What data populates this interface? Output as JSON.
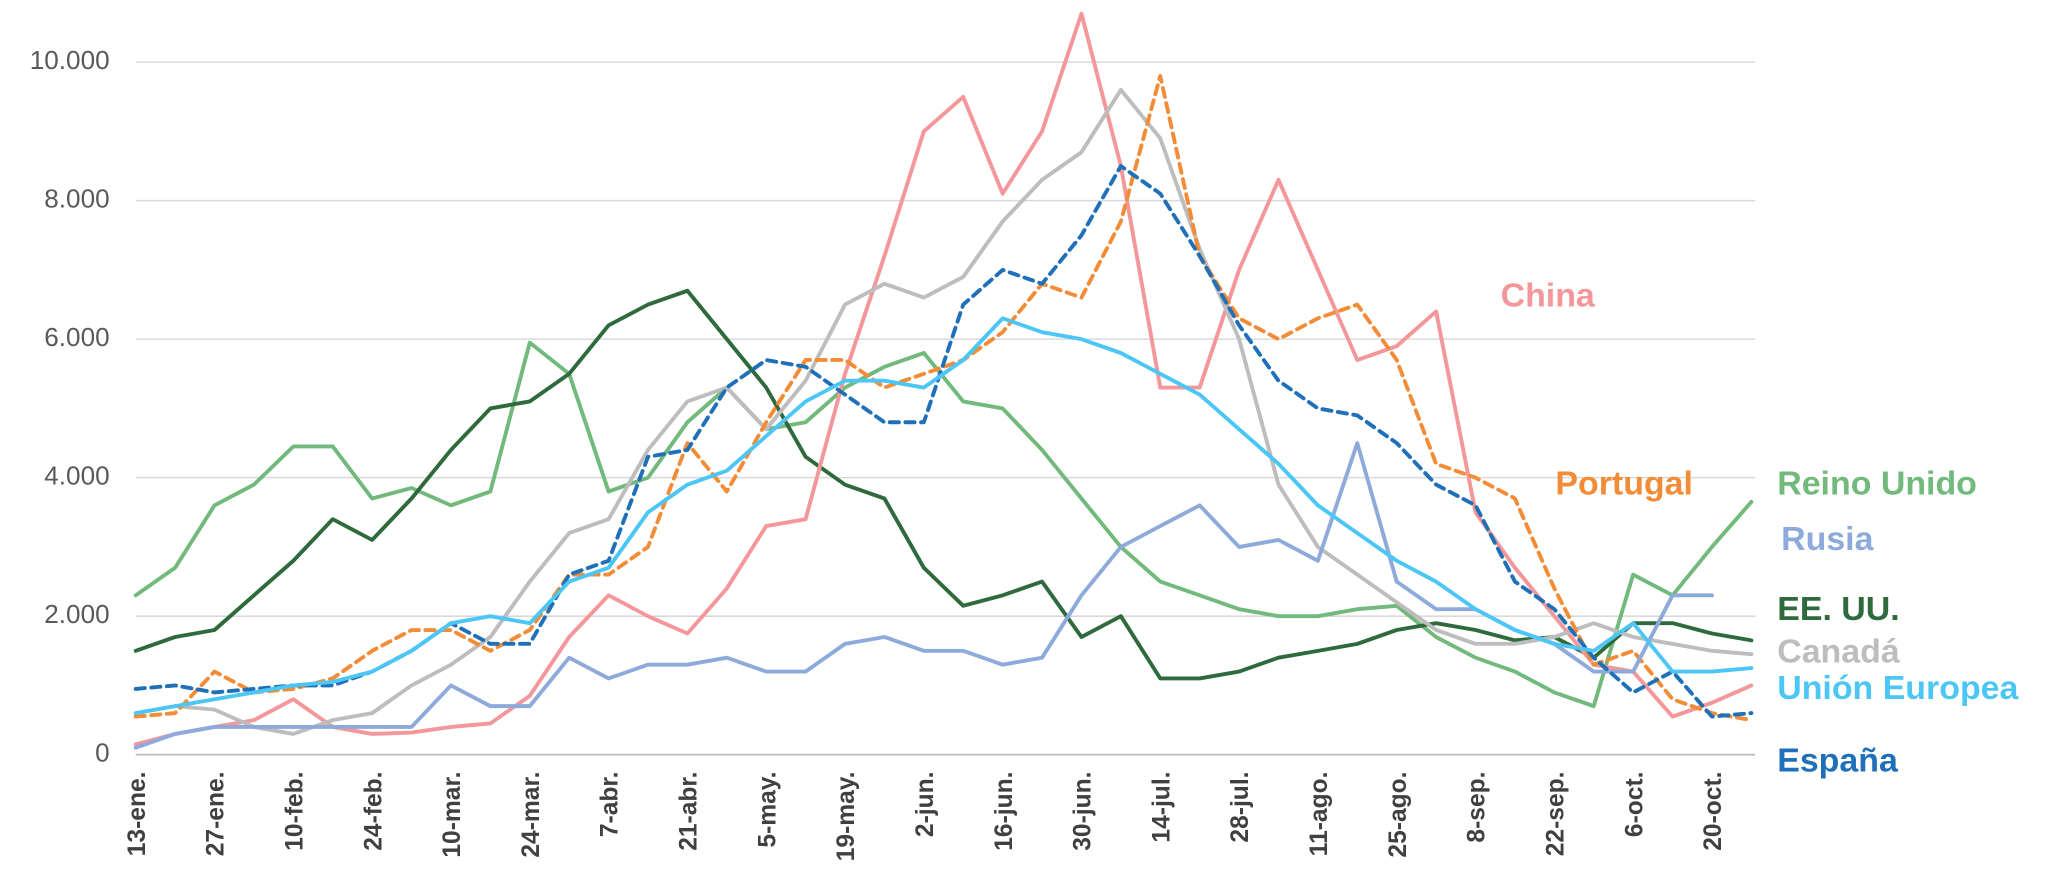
{
  "chart_data": {
    "type": "line",
    "categories": [
      "13-ene.",
      null,
      "27-ene.",
      null,
      "10-feb.",
      null,
      "24-feb.",
      null,
      "10-mar.",
      null,
      "24-mar.",
      null,
      "7-abr.",
      null,
      "21-abr.",
      null,
      "5-may.",
      null,
      "19-may.",
      null,
      "2-jun.",
      null,
      "16-jun.",
      null,
      "30-jun.",
      null,
      "14-jul.",
      null,
      "28-jul.",
      null,
      "11-ago.",
      null,
      "25-ago.",
      null,
      "8-sep.",
      null,
      "22-sep.",
      null,
      "6-oct.",
      null,
      "20-oct.",
      null
    ],
    "ylim": [
      0,
      10700
    ],
    "yticks": [
      0,
      {
        "value": 2000,
        "label": "2.000"
      },
      {
        "value": 4000,
        "label": "4.000"
      },
      {
        "value": 6000,
        "label": "6.000"
      },
      {
        "value": 8000,
        "label": "8.000"
      },
      {
        "value": 10000,
        "label": "10.000"
      }
    ],
    "grid": true,
    "series": [
      {
        "name": "Reino Unido",
        "color": "#72b97c",
        "values": [
          2300,
          2700,
          3600,
          3900,
          4450,
          4450,
          3700,
          3850,
          3600,
          3800,
          5950,
          5500,
          3800,
          4000,
          4800,
          5300,
          4700,
          4800,
          5300,
          5600,
          5800,
          5100,
          5000,
          4400,
          3700,
          3000,
          2500,
          2300,
          2100,
          2000,
          2000,
          2100,
          2150,
          1700,
          1400,
          1200,
          900,
          700,
          2600,
          2300,
          3000,
          3650
        ]
      },
      {
        "name": "EE. UU.",
        "color": "#2f6a3c",
        "values": [
          1500,
          1700,
          1800,
          2300,
          2800,
          3400,
          3100,
          3700,
          4400,
          5000,
          5100,
          5500,
          6200,
          6500,
          6700,
          6000,
          5300,
          4300,
          3900,
          3700,
          2700,
          2150,
          2300,
          2500,
          1700,
          2000,
          1100,
          1100,
          1200,
          1400,
          1500,
          1600,
          1800,
          1900,
          1800,
          1650,
          1700,
          1400,
          1900,
          1900,
          1750,
          1650
        ]
      },
      {
        "name": "China",
        "color": "#f4979b",
        "values": [
          150,
          300,
          400,
          500,
          800,
          400,
          300,
          320,
          400,
          450,
          850,
          1700,
          2300,
          2000,
          1750,
          2400,
          3300,
          3400,
          5500,
          7200,
          9000,
          9500,
          8100,
          9000,
          10700,
          8500,
          5300,
          5300,
          7000,
          8300,
          7000,
          5700,
          5900,
          6400,
          3500,
          2700,
          2000,
          1300,
          1200,
          550,
          750,
          1000
        ]
      },
      {
        "name": "Canadá",
        "color": "#bdbdbd",
        "values": [
          600,
          700,
          650,
          400,
          300,
          500,
          600,
          1000,
          1300,
          1700,
          2500,
          3200,
          3400,
          4400,
          5100,
          5300,
          4700,
          5400,
          6500,
          6800,
          6600,
          6900,
          7700,
          8300,
          8700,
          9600,
          8900,
          7300,
          6000,
          3900,
          3000,
          2600,
          2200,
          1800,
          1600,
          1600,
          1700,
          1900,
          1700,
          1600,
          1500,
          1450
        ]
      },
      {
        "name": "Portugal",
        "color": "#f28c36",
        "dashed": true,
        "values": [
          550,
          600,
          1200,
          900,
          950,
          1100,
          1500,
          1800,
          1800,
          1500,
          1800,
          2600,
          2600,
          3000,
          4500,
          3800,
          4800,
          5700,
          5700,
          5300,
          5500,
          5700,
          6100,
          6800,
          6600,
          7700,
          9800,
          7200,
          6300,
          6000,
          6300,
          6500,
          5700,
          4200,
          4000,
          3700,
          2400,
          1300,
          1500,
          800,
          600,
          500
        ]
      },
      {
        "name": "Rusia",
        "color": "#8eaadb",
        "values": [
          100,
          300,
          400,
          400,
          400,
          400,
          400,
          400,
          1000,
          700,
          700,
          1400,
          1100,
          1300,
          1300,
          1400,
          1200,
          1200,
          1600,
          1700,
          1500,
          1500,
          1300,
          1400,
          2300,
          3000,
          3300,
          3600,
          3000,
          3100,
          2800,
          4500,
          2500,
          2100,
          2100,
          1800,
          1600,
          1200,
          1200,
          2300,
          2300,
          null
        ]
      },
      {
        "name": "España",
        "color": "#1f70b8",
        "dashed": true,
        "values": [
          950,
          1000,
          900,
          950,
          1000,
          1000,
          1200,
          1500,
          1900,
          1600,
          1600,
          2600,
          2800,
          4300,
          4400,
          5300,
          5700,
          5600,
          5200,
          4800,
          4800,
          6500,
          7000,
          6800,
          7500,
          8500,
          8100,
          7200,
          6200,
          5400,
          5000,
          4900,
          4500,
          3900,
          3600,
          2500,
          2100,
          1400,
          900,
          1200,
          550,
          600
        ]
      },
      {
        "name": "Unión Europea",
        "color": "#4cc6f4",
        "values": [
          600,
          700,
          800,
          900,
          1000,
          1050,
          1200,
          1500,
          1900,
          2000,
          1900,
          2500,
          2700,
          3500,
          3900,
          4100,
          4600,
          5100,
          5400,
          5400,
          5300,
          5700,
          6300,
          6100,
          6000,
          5800,
          5500,
          5200,
          4700,
          4200,
          3600,
          3200,
          2800,
          2500,
          2100,
          1800,
          1600,
          1500,
          1900,
          1200,
          1200,
          1250
        ]
      }
    ]
  }
}
